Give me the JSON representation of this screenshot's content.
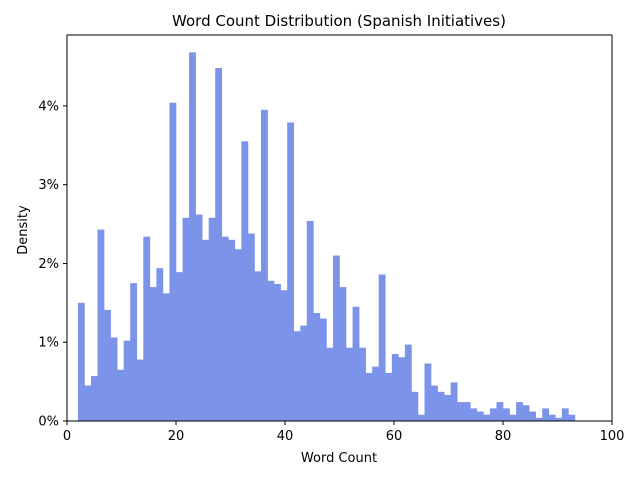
{
  "chart_data": {
    "type": "bar",
    "title": "Word Count Distribution (Spanish Initiatives)",
    "xlabel": "Word Count",
    "ylabel": "Density",
    "xlim": [
      0,
      100
    ],
    "ylim": [
      0,
      4.9
    ],
    "x_ticks": [
      0,
      20,
      40,
      60,
      80,
      100
    ],
    "y_ticks": [
      0,
      1,
      2,
      3,
      4
    ],
    "x_tick_labels": [
      "0",
      "20",
      "40",
      "60",
      "80",
      "100"
    ],
    "y_tick_labels": [
      "0%",
      "1%",
      "2%",
      "3%",
      "4%"
    ],
    "grid": false,
    "bar_color": "#7b93e9",
    "bins": {
      "start": 2,
      "width": 1.2,
      "values": [
        1.5,
        0.45,
        0.57,
        2.43,
        1.41,
        1.06,
        0.65,
        1.02,
        1.75,
        0.78,
        2.34,
        1.7,
        1.94,
        1.62,
        4.04,
        1.89,
        2.58,
        4.68,
        2.62,
        2.3,
        2.58,
        4.48,
        2.34,
        2.3,
        2.18,
        3.55,
        2.38,
        1.9,
        3.95,
        1.78,
        1.74,
        1.66,
        3.79,
        1.14,
        1.21,
        2.54,
        1.37,
        1.3,
        0.93,
        2.1,
        1.7,
        0.93,
        1.45,
        0.93,
        0.61,
        0.69,
        1.86,
        0.61,
        0.85,
        0.81,
        0.97,
        0.37,
        0.08,
        0.73,
        0.45,
        0.37,
        0.33,
        0.49,
        0.24,
        0.24,
        0.16,
        0.12,
        0.08,
        0.16,
        0.24,
        0.16,
        0.08,
        0.24,
        0.2,
        0.12,
        0.04,
        0.16,
        0.08,
        0.04,
        0.16,
        0.08
      ]
    }
  }
}
